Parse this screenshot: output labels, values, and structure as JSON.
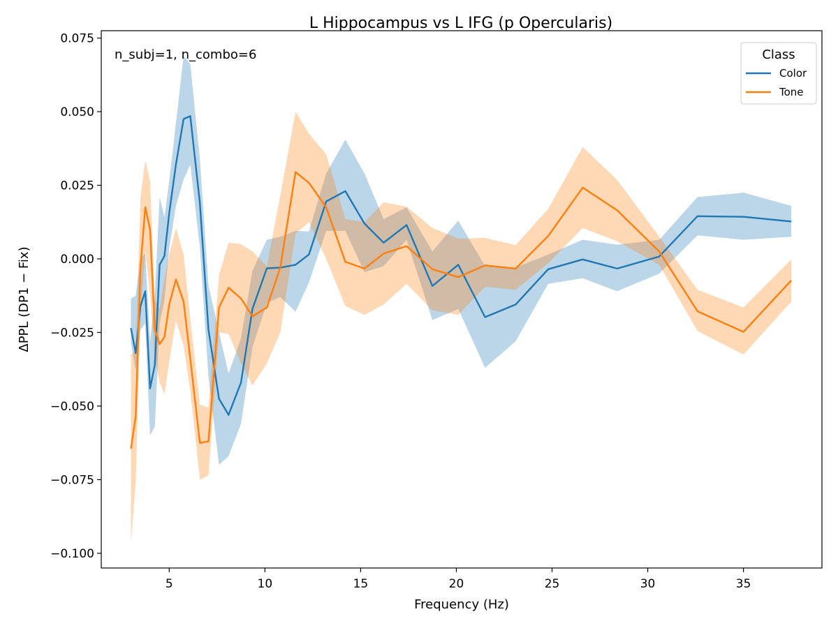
{
  "chart_data": {
    "type": "line",
    "title": "L Hippocampus vs L IFG (p Opercularis)",
    "xlabel": "Frequency (Hz)",
    "ylabel": "ΔPPL (DP1 − Fix)",
    "annotation": "n_subj=1, n_combo=6",
    "legend_title": "Class",
    "legend_position": "top-right",
    "xlim": [
      1.45,
      39.1
    ],
    "ylim": [
      -0.105,
      0.0775
    ],
    "xticks": [
      5,
      10,
      15,
      20,
      25,
      30,
      35
    ],
    "xtick_labels": [
      "5",
      "10",
      "15",
      "20",
      "25",
      "30",
      "35"
    ],
    "yticks": [
      0.075,
      0.05,
      0.025,
      0.0,
      -0.025,
      -0.05,
      -0.075,
      -0.1
    ],
    "ytick_labels": [
      "0.075",
      "0.050",
      "0.025",
      "0.000",
      "−0.025",
      "−0.050",
      "−0.075",
      "−0.100"
    ],
    "grid": false,
    "series": [
      {
        "name": "Color",
        "color": "#1f77b4",
        "band_opacity": 0.3,
        "x": [
          3.0,
          3.25,
          3.5,
          3.75,
          4.0,
          4.25,
          4.5,
          4.75,
          5.0,
          5.35,
          5.75,
          6.1,
          6.6,
          7.05,
          7.6,
          8.1,
          8.75,
          9.35,
          10.1,
          10.8,
          11.6,
          12.3,
          13.2,
          14.2,
          15.2,
          16.2,
          17.4,
          18.75,
          20.1,
          21.5,
          23.1,
          24.8,
          26.6,
          28.4,
          30.6,
          32.6,
          35.0,
          37.5
        ],
        "y": [
          -0.0235,
          -0.032,
          -0.016,
          -0.011,
          -0.044,
          -0.036,
          -0.002,
          0.001,
          0.0155,
          0.032,
          0.0475,
          0.0485,
          0.019,
          -0.024,
          -0.0475,
          -0.053,
          -0.042,
          -0.017,
          -0.0032,
          -0.003,
          -0.002,
          0.0015,
          0.0195,
          0.023,
          0.012,
          0.0055,
          0.0115,
          -0.0092,
          -0.002,
          -0.0198,
          -0.0155,
          -0.0035,
          -0.0002,
          -0.0033,
          0.0008,
          0.0145,
          0.0143,
          0.0127
        ],
        "lower": [
          -0.0285,
          -0.038,
          -0.024,
          -0.022,
          -0.06,
          -0.057,
          -0.022,
          -0.014,
          0.0035,
          0.018,
          0.027,
          0.032,
          0.004,
          -0.04,
          -0.07,
          -0.067,
          -0.056,
          -0.03,
          -0.015,
          -0.013,
          -0.018,
          -0.008,
          0.0095,
          0.0095,
          -0.0045,
          -0.0025,
          0.0065,
          -0.0208,
          -0.017,
          -0.037,
          -0.028,
          -0.0085,
          -0.0066,
          -0.011,
          -0.005,
          0.008,
          0.0065,
          0.0075
        ],
        "upper": [
          -0.0135,
          -0.0125,
          0.0,
          0.002,
          -0.028,
          -0.012,
          0.021,
          0.014,
          0.0265,
          0.046,
          0.069,
          0.066,
          0.034,
          -0.009,
          -0.025,
          -0.039,
          -0.027,
          -0.004,
          0.0065,
          0.0075,
          0.0095,
          0.0093,
          0.029,
          0.0405,
          0.029,
          0.0135,
          0.0175,
          0.0025,
          0.013,
          -0.0025,
          -0.003,
          0.0015,
          0.0065,
          0.0048,
          0.0065,
          0.021,
          0.0225,
          0.018
        ]
      },
      {
        "name": "Tone",
        "color": "#ff7f0e",
        "band_opacity": 0.3,
        "x": [
          3.0,
          3.25,
          3.5,
          3.75,
          4.0,
          4.25,
          4.5,
          4.75,
          5.0,
          5.35,
          5.75,
          6.1,
          6.6,
          7.05,
          7.6,
          8.1,
          8.75,
          9.35,
          10.1,
          10.8,
          11.6,
          12.3,
          13.2,
          14.2,
          15.2,
          16.2,
          17.4,
          18.75,
          20.1,
          21.5,
          23.1,
          24.8,
          26.6,
          28.4,
          30.6,
          32.6,
          35.0,
          37.5
        ],
        "y": [
          -0.0645,
          -0.0535,
          -0.0025,
          0.0175,
          0.01,
          -0.024,
          -0.029,
          -0.0265,
          -0.0155,
          -0.007,
          -0.0145,
          -0.034,
          -0.0625,
          -0.062,
          -0.0165,
          -0.0098,
          -0.0135,
          -0.0195,
          -0.0165,
          -0.003,
          0.0295,
          0.0258,
          0.0175,
          -0.001,
          -0.0033,
          0.0018,
          0.0043,
          -0.0035,
          -0.0062,
          -0.0022,
          -0.0033,
          0.0078,
          0.0242,
          0.0165,
          0.0025,
          -0.0178,
          -0.0248,
          -0.0073
        ],
        "lower": [
          -0.0965,
          -0.076,
          -0.0195,
          0.0025,
          -0.012,
          -0.034,
          -0.042,
          -0.046,
          -0.035,
          -0.021,
          -0.0295,
          -0.045,
          -0.075,
          -0.0735,
          -0.025,
          -0.0255,
          -0.0355,
          -0.043,
          -0.0355,
          -0.025,
          0.0085,
          0.0125,
          0.0,
          -0.016,
          -0.019,
          -0.0155,
          -0.0085,
          -0.0175,
          -0.019,
          -0.0095,
          -0.0105,
          -0.0015,
          0.0105,
          0.006,
          -0.002,
          -0.0245,
          -0.0325,
          -0.0145
        ],
        "upper": [
          -0.0325,
          -0.031,
          0.021,
          0.0335,
          0.0265,
          -0.014,
          -0.017,
          -0.007,
          0.0015,
          0.0105,
          0.0015,
          -0.0205,
          -0.0495,
          -0.0505,
          -0.0055,
          0.0055,
          0.005,
          0.0025,
          -0.0025,
          0.0215,
          0.05,
          0.0425,
          0.0355,
          0.0135,
          0.0125,
          0.0192,
          0.0177,
          0.0105,
          0.0069,
          0.0071,
          0.0047,
          0.017,
          0.038,
          0.0268,
          0.0075,
          -0.0105,
          -0.0165,
          -0.0002
        ]
      }
    ]
  }
}
